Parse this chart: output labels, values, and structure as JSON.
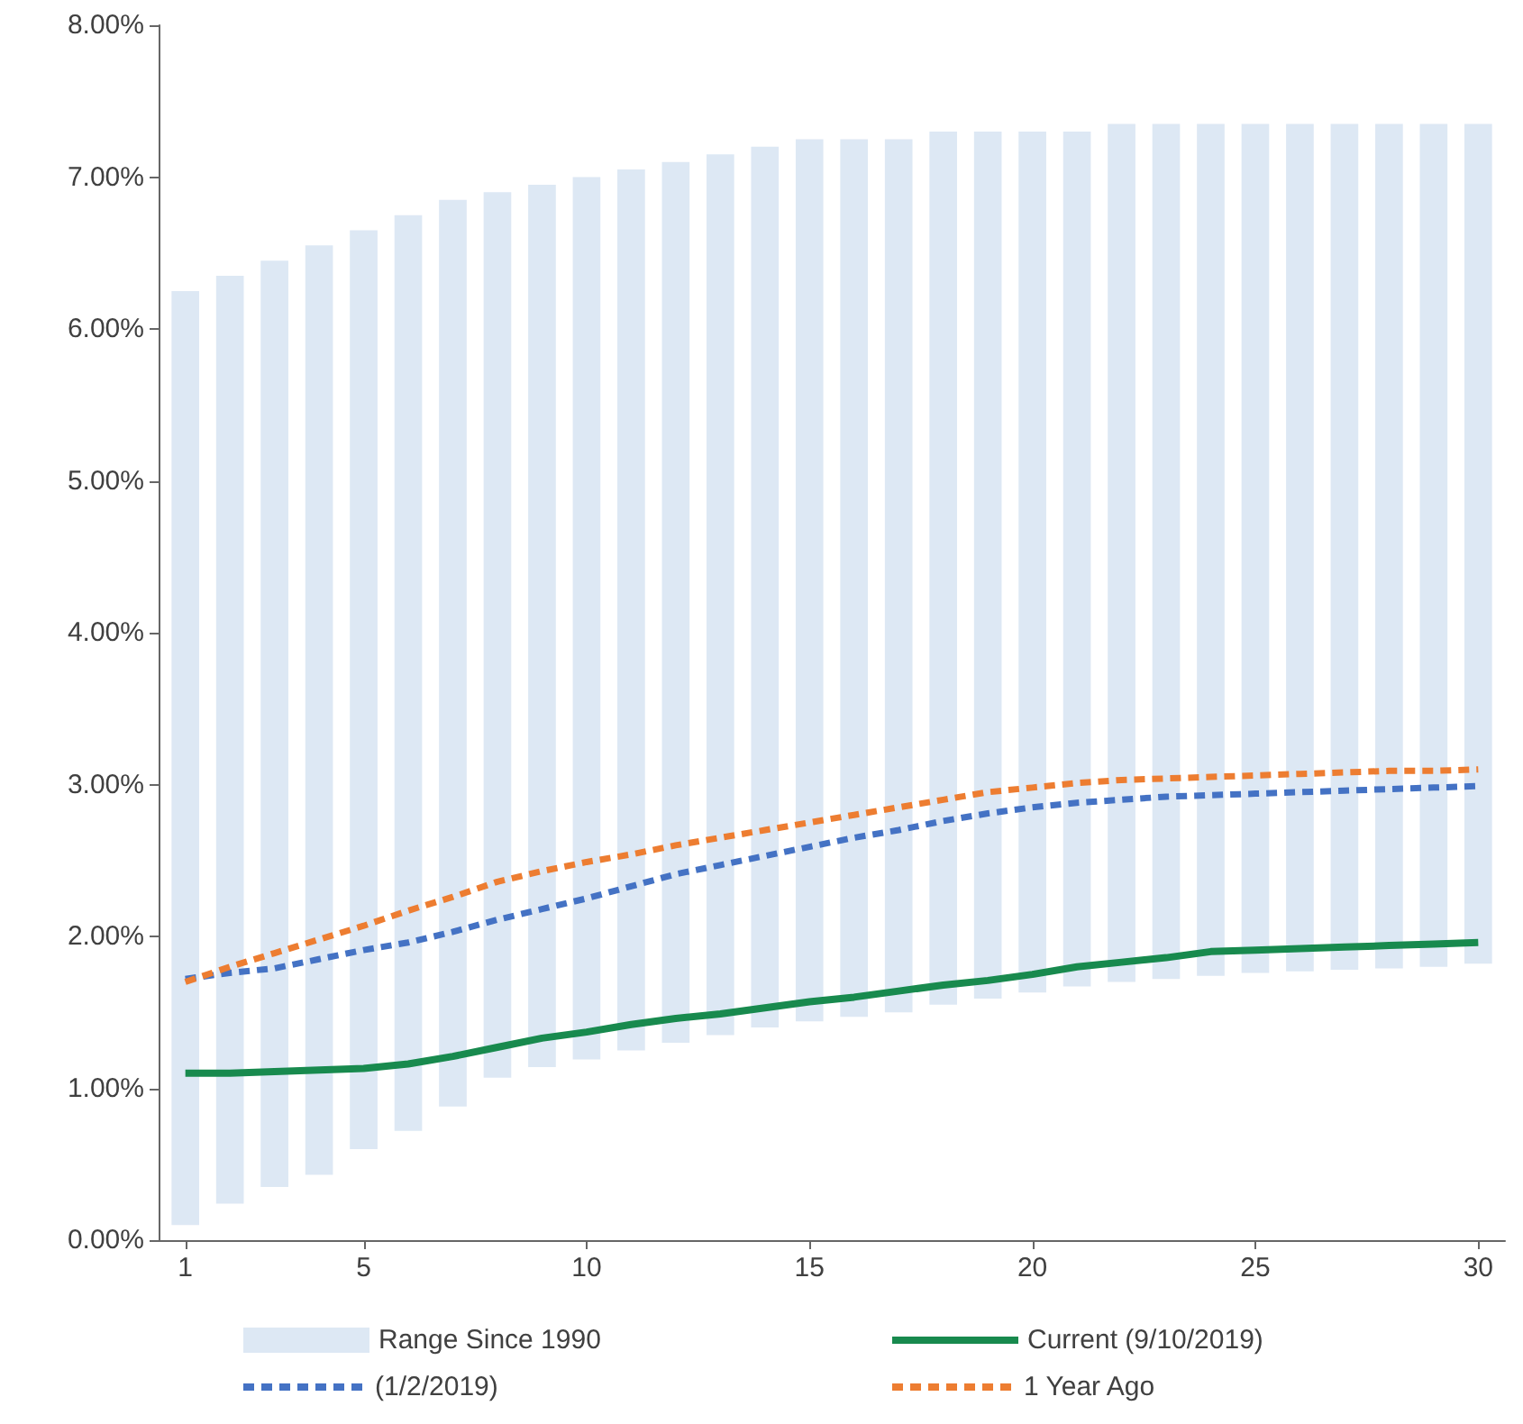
{
  "chart_data": {
    "type": "line",
    "x": [
      1,
      2,
      3,
      4,
      5,
      6,
      7,
      8,
      9,
      10,
      11,
      12,
      13,
      14,
      15,
      16,
      17,
      18,
      19,
      20,
      21,
      22,
      23,
      24,
      25,
      26,
      27,
      28,
      29,
      30
    ],
    "xlim": [
      0.4,
      30.6
    ],
    "xticks": [
      1,
      5,
      10,
      15,
      20,
      25,
      30
    ],
    "ylim": [
      0,
      8
    ],
    "yticks": [
      {
        "value": 0,
        "label": "0.00%"
      },
      {
        "value": 1,
        "label": "1.00%"
      },
      {
        "value": 2,
        "label": "2.00%"
      },
      {
        "value": 3,
        "label": "3.00%"
      },
      {
        "value": 4,
        "label": "4.00%"
      },
      {
        "value": 5,
        "label": "5.00%"
      },
      {
        "value": 6,
        "label": "6.00%"
      },
      {
        "value": 7,
        "label": "7.00%"
      },
      {
        "value": 8,
        "label": "8.00%"
      }
    ],
    "grid": false,
    "legend": "bottom",
    "series": [
      {
        "name": "Range Since 1990",
        "type": "bar",
        "color": "#dde8f4",
        "base": [
          0.1,
          0.24,
          0.35,
          0.43,
          0.6,
          0.72,
          0.88,
          1.07,
          1.14,
          1.19,
          1.25,
          1.3,
          1.35,
          1.4,
          1.44,
          1.47,
          1.5,
          1.55,
          1.59,
          1.63,
          1.67,
          1.7,
          1.72,
          1.74,
          1.76,
          1.77,
          1.78,
          1.79,
          1.8,
          1.82
        ],
        "values": [
          6.15,
          6.11,
          6.1,
          6.12,
          6.05,
          6.03,
          5.97,
          5.83,
          5.81,
          5.81,
          5.8,
          5.8,
          5.8,
          5.8,
          5.81,
          5.78,
          5.75,
          5.75,
          5.71,
          5.67,
          5.63,
          5.65,
          5.63,
          5.61,
          5.59,
          5.58,
          5.57,
          5.56,
          5.55,
          5.53
        ]
      },
      {
        "name": "Current (9/10/2019)",
        "color": "#188a4e",
        "line_style": "solid",
        "values": [
          1.1,
          1.1,
          1.11,
          1.12,
          1.13,
          1.16,
          1.21,
          1.27,
          1.33,
          1.37,
          1.42,
          1.46,
          1.49,
          1.53,
          1.57,
          1.6,
          1.64,
          1.68,
          1.71,
          1.75,
          1.8,
          1.83,
          1.86,
          1.9,
          1.91,
          1.92,
          1.93,
          1.94,
          1.95,
          1.96
        ]
      },
      {
        "name": "(1/2/2019)",
        "color": "#4472c4",
        "line_style": "dashed",
        "values": [
          1.72,
          1.76,
          1.79,
          1.85,
          1.91,
          1.96,
          2.03,
          2.11,
          2.18,
          2.25,
          2.33,
          2.41,
          2.47,
          2.53,
          2.59,
          2.65,
          2.7,
          2.76,
          2.81,
          2.85,
          2.88,
          2.9,
          2.92,
          2.93,
          2.94,
          2.95,
          2.96,
          2.97,
          2.98,
          2.99
        ]
      },
      {
        "name": "1 Year Ago",
        "color": "#ed7d31",
        "line_style": "dashed",
        "values": [
          1.7,
          1.8,
          1.89,
          1.98,
          2.07,
          2.17,
          2.26,
          2.36,
          2.43,
          2.49,
          2.54,
          2.6,
          2.65,
          2.7,
          2.75,
          2.8,
          2.85,
          2.9,
          2.95,
          2.98,
          3.01,
          3.03,
          3.04,
          3.05,
          3.06,
          3.07,
          3.08,
          3.09,
          3.09,
          3.1
        ]
      }
    ]
  }
}
